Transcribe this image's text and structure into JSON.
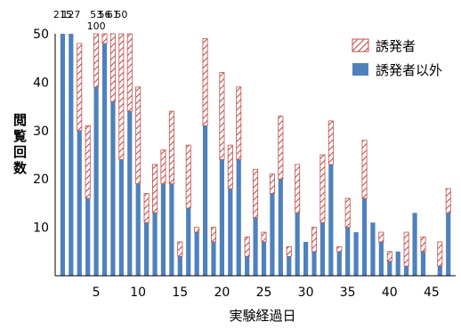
{
  "chart_data": {
    "type": "bar",
    "stacked": true,
    "xlabel": "実験経過日",
    "ylabel": "閲覧回数",
    "ylim": [
      0,
      50
    ],
    "yticks": [
      10,
      20,
      30,
      40,
      50
    ],
    "xticks": [
      5,
      10,
      15,
      20,
      25,
      30,
      35,
      40,
      45
    ],
    "legend_position": "top-right",
    "grid": false,
    "x": [
      1,
      2,
      3,
      4,
      5,
      6,
      7,
      8,
      9,
      10,
      11,
      12,
      13,
      14,
      15,
      16,
      17,
      18,
      19,
      20,
      21,
      22,
      23,
      24,
      25,
      26,
      27,
      28,
      29,
      30,
      31,
      32,
      33,
      34,
      35,
      36,
      37,
      38,
      39,
      40,
      41,
      42,
      43,
      44,
      45,
      46,
      47
    ],
    "series": [
      {
        "name": "誘発者以外",
        "color": "#4F81BD",
        "values": [
          50,
          50,
          30,
          16,
          39,
          48,
          36,
          24,
          34,
          19,
          11,
          13,
          19,
          19,
          4,
          14,
          9,
          31,
          7,
          24,
          18,
          24,
          4,
          12,
          7,
          17,
          20,
          4,
          13,
          7,
          5,
          11,
          23,
          5,
          10,
          9,
          16,
          11,
          7,
          3,
          5,
          2,
          13,
          5,
          0,
          2,
          13
        ]
      },
      {
        "name": "誘発者",
        "color": "#C0504D",
        "pattern": "diagonal-hatch",
        "values": [
          0,
          0,
          18,
          15,
          11,
          2,
          14,
          26,
          16,
          20,
          6,
          10,
          7,
          15,
          3,
          13,
          1,
          18,
          3,
          18,
          9,
          15,
          4,
          10,
          2,
          4,
          13,
          2,
          10,
          0,
          5,
          14,
          9,
          1,
          6,
          0,
          12,
          0,
          2,
          2,
          0,
          7,
          0,
          3,
          0,
          5,
          5
        ]
      }
    ],
    "bar_labels": [
      {
        "x": 1,
        "text": "215"
      },
      {
        "x": 2,
        "text": "127"
      },
      {
        "x": 5,
        "text": "53"
      },
      {
        "x": 5,
        "text": "100"
      },
      {
        "x": 6,
        "text": "56"
      },
      {
        "x": 7,
        "text": "61"
      },
      {
        "x": 8,
        "text": "50"
      }
    ]
  }
}
